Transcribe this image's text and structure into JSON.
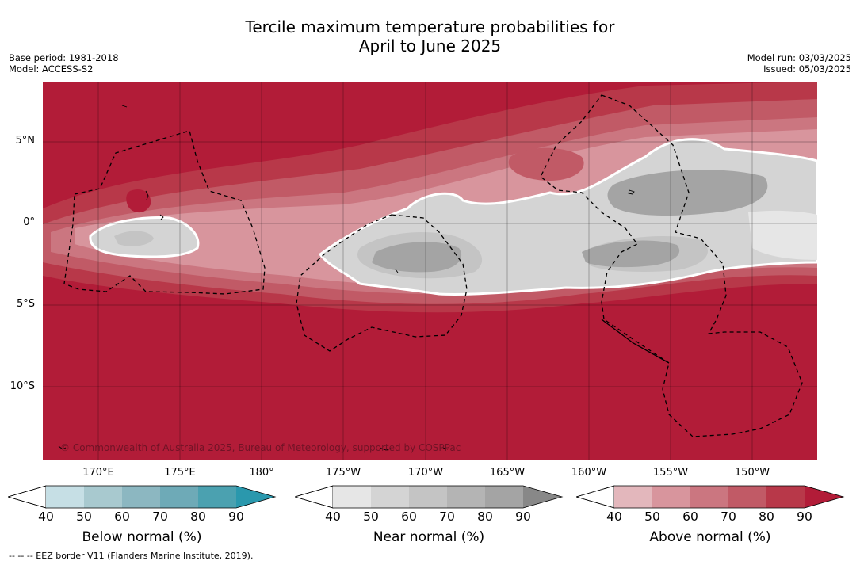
{
  "header": {
    "title_line1": "Tercile maximum temperature probabilities for",
    "title_line2": "April to June 2025",
    "base_period": "Base period: 1981-2018",
    "model": "Model: ACCESS-S2",
    "model_run": "Model run: 03/03/2025",
    "issued": "Issued: 05/03/2025"
  },
  "map": {
    "lat_labels": [
      "5°N",
      "0°",
      "5°S",
      "10°S"
    ],
    "lon_labels": [
      "170°E",
      "175°E",
      "180°",
      "175°W",
      "170°W",
      "165°W",
      "160°W",
      "155°W",
      "150°W"
    ],
    "copyright": "© Commonwealth of Australia 2025, Bureau of Meteorology, supported by COSPPac"
  },
  "colorbars": [
    {
      "title": "Below normal (%)",
      "ticks": [
        "40",
        "50",
        "60",
        "70",
        "80",
        "90"
      ],
      "colors": [
        "#c6dfe5",
        "#a8c9cf",
        "#8cb7c1",
        "#6eaab7",
        "#4ba1b0",
        "#2a98ad"
      ]
    },
    {
      "title": "Near normal (%)",
      "ticks": [
        "40",
        "50",
        "60",
        "70",
        "80",
        "90"
      ],
      "colors": [
        "#e6e6e6",
        "#d4d4d4",
        "#c4c4c4",
        "#b4b4b4",
        "#a4a4a4",
        "#888888"
      ]
    },
    {
      "title": "Above normal (%)",
      "ticks": [
        "40",
        "50",
        "60",
        "70",
        "80",
        "90"
      ],
      "colors": [
        "#e3b7bc",
        "#d8959d",
        "#cb7680",
        "#c15a66",
        "#b83849",
        "#b21c38"
      ]
    }
  ],
  "footnote": "-- -- -- EEZ border V11 (Flanders Marine Institute, 2019)."
}
